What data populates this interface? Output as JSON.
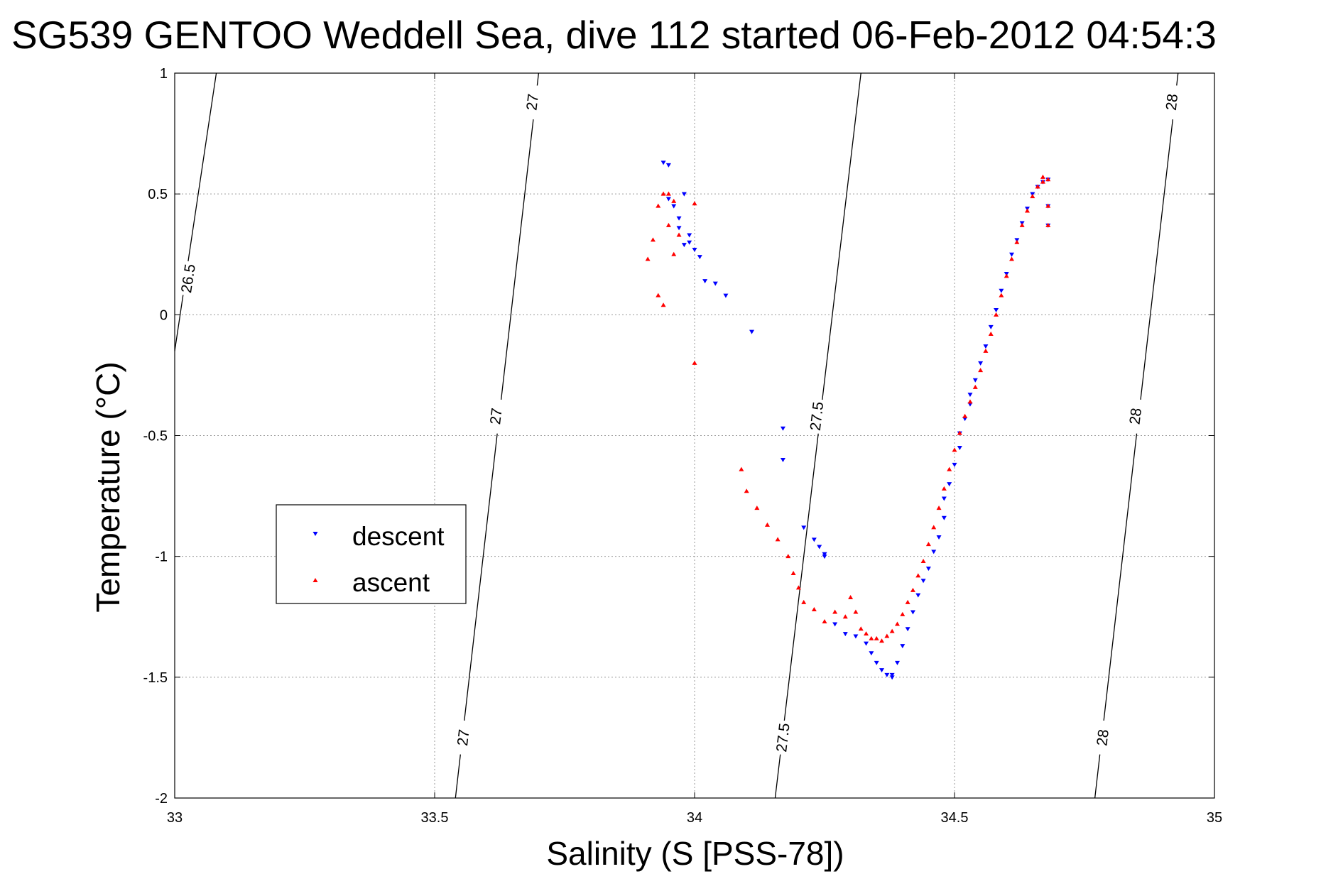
{
  "chart_data": {
    "type": "scatter",
    "title": "SG539 GENTOO Weddell Sea, dive 112 started 06-Feb-2012 04:54:3",
    "xlabel": "Salinity (S [PSS-78])",
    "ylabel": "Temperature (°C)",
    "xlim": [
      33,
      35
    ],
    "ylim": [
      -2,
      1
    ],
    "xticks": [
      "33",
      "33.5",
      "34",
      "34.5",
      "35"
    ],
    "yticks": [
      "1",
      "0.5",
      "0",
      "-0.5",
      "-1",
      "-1.5",
      "-2"
    ],
    "grid": true,
    "legend_position": "middle-left",
    "series": [
      {
        "name": "descent",
        "color": "#0000ff",
        "marker": "triangle-down",
        "x": [
          33.94,
          33.95,
          33.95,
          33.96,
          33.97,
          33.98,
          33.99,
          33.97,
          33.98,
          33.99,
          34.0,
          34.01,
          34.02,
          34.04,
          34.06,
          34.11,
          34.17,
          34.17,
          34.21,
          34.23,
          34.24,
          34.25,
          34.25,
          34.27,
          34.29,
          34.31,
          34.33,
          34.34,
          34.35,
          34.36,
          34.37,
          34.38,
          34.38,
          34.39,
          34.4,
          34.41,
          34.42,
          34.43,
          34.44,
          34.45,
          34.46,
          34.47,
          34.48,
          34.48,
          34.49,
          34.5,
          34.51,
          34.51,
          34.52,
          34.53,
          34.53,
          34.54,
          34.55,
          34.56,
          34.57,
          34.58,
          34.59,
          34.6,
          34.61,
          34.62,
          34.63,
          34.64,
          34.65,
          34.66,
          34.67,
          34.68,
          34.68,
          34.68
        ],
        "y": [
          0.63,
          0.62,
          0.48,
          0.45,
          0.4,
          0.5,
          0.33,
          0.36,
          0.29,
          0.3,
          0.27,
          0.24,
          0.14,
          0.13,
          0.08,
          -0.07,
          -0.47,
          -0.6,
          -0.88,
          -0.93,
          -0.96,
          -1.0,
          -0.99,
          -1.28,
          -1.32,
          -1.33,
          -1.36,
          -1.4,
          -1.44,
          -1.47,
          -1.49,
          -1.5,
          -1.49,
          -1.44,
          -1.37,
          -1.3,
          -1.23,
          -1.16,
          -1.1,
          -1.05,
          -0.98,
          -0.92,
          -0.84,
          -0.76,
          -0.7,
          -0.62,
          -0.55,
          -0.49,
          -0.43,
          -0.37,
          -0.33,
          -0.27,
          -0.2,
          -0.13,
          -0.05,
          0.02,
          0.1,
          0.17,
          0.25,
          0.31,
          0.38,
          0.44,
          0.5,
          0.53,
          0.55,
          0.56,
          0.45,
          0.37
        ]
      },
      {
        "name": "ascent",
        "color": "#ff0000",
        "marker": "triangle-up",
        "x": [
          33.91,
          33.92,
          33.93,
          33.93,
          33.94,
          33.94,
          33.95,
          33.95,
          33.96,
          33.96,
          33.97,
          34.0,
          34.0,
          34.09,
          34.1,
          34.12,
          34.14,
          34.16,
          34.18,
          34.19,
          34.2,
          34.21,
          34.23,
          34.25,
          34.27,
          34.29,
          34.3,
          34.31,
          34.32,
          34.33,
          34.34,
          34.35,
          34.36,
          34.37,
          34.38,
          34.39,
          34.4,
          34.41,
          34.42,
          34.43,
          34.44,
          34.45,
          34.46,
          34.47,
          34.48,
          34.49,
          34.5,
          34.51,
          34.52,
          34.53,
          34.54,
          34.55,
          34.56,
          34.57,
          34.58,
          34.59,
          34.6,
          34.61,
          34.62,
          34.63,
          34.64,
          34.65,
          34.66,
          34.67,
          34.67,
          34.68,
          34.68,
          34.68
        ],
        "y": [
          0.23,
          0.31,
          0.45,
          0.08,
          0.04,
          0.5,
          0.5,
          0.37,
          0.47,
          0.25,
          0.33,
          0.46,
          -0.2,
          -0.64,
          -0.73,
          -0.8,
          -0.87,
          -0.93,
          -1.0,
          -1.07,
          -1.13,
          -1.19,
          -1.22,
          -1.27,
          -1.23,
          -1.25,
          -1.17,
          -1.23,
          -1.3,
          -1.32,
          -1.34,
          -1.34,
          -1.35,
          -1.33,
          -1.31,
          -1.28,
          -1.24,
          -1.19,
          -1.14,
          -1.08,
          -1.02,
          -0.95,
          -0.88,
          -0.8,
          -0.72,
          -0.64,
          -0.56,
          -0.49,
          -0.42,
          -0.36,
          -0.3,
          -0.23,
          -0.15,
          -0.08,
          0.0,
          0.08,
          0.16,
          0.23,
          0.3,
          0.37,
          0.43,
          0.49,
          0.53,
          0.55,
          0.57,
          0.56,
          0.45,
          0.37
        ]
      }
    ],
    "contours": [
      {
        "level": "26.5",
        "x": [
          33.0,
          33.08
        ],
        "y": [
          -0.15,
          1.0
        ],
        "labels": [
          {
            "x": 33.026,
            "y": 0.15
          }
        ]
      },
      {
        "level": "27",
        "x": [
          33.54,
          33.7
        ],
        "y": [
          -2.0,
          1.0
        ],
        "labels": [
          {
            "x": 33.555,
            "y": -1.75
          },
          {
            "x": 33.618,
            "y": -0.42
          },
          {
            "x": 33.688,
            "y": 0.88
          }
        ]
      },
      {
        "level": "27.5",
        "x": [
          34.155,
          34.32
        ],
        "y": [
          -2.0,
          1.0
        ],
        "labels": [
          {
            "x": 34.17,
            "y": -1.75
          },
          {
            "x": 34.235,
            "y": -0.42
          }
        ]
      },
      {
        "level": "28",
        "x": [
          34.77,
          34.93
        ],
        "y": [
          -2.0,
          1.0
        ],
        "labels": [
          {
            "x": 34.785,
            "y": -1.75
          },
          {
            "x": 34.848,
            "y": -0.42
          },
          {
            "x": 34.918,
            "y": 0.88
          }
        ]
      }
    ]
  }
}
